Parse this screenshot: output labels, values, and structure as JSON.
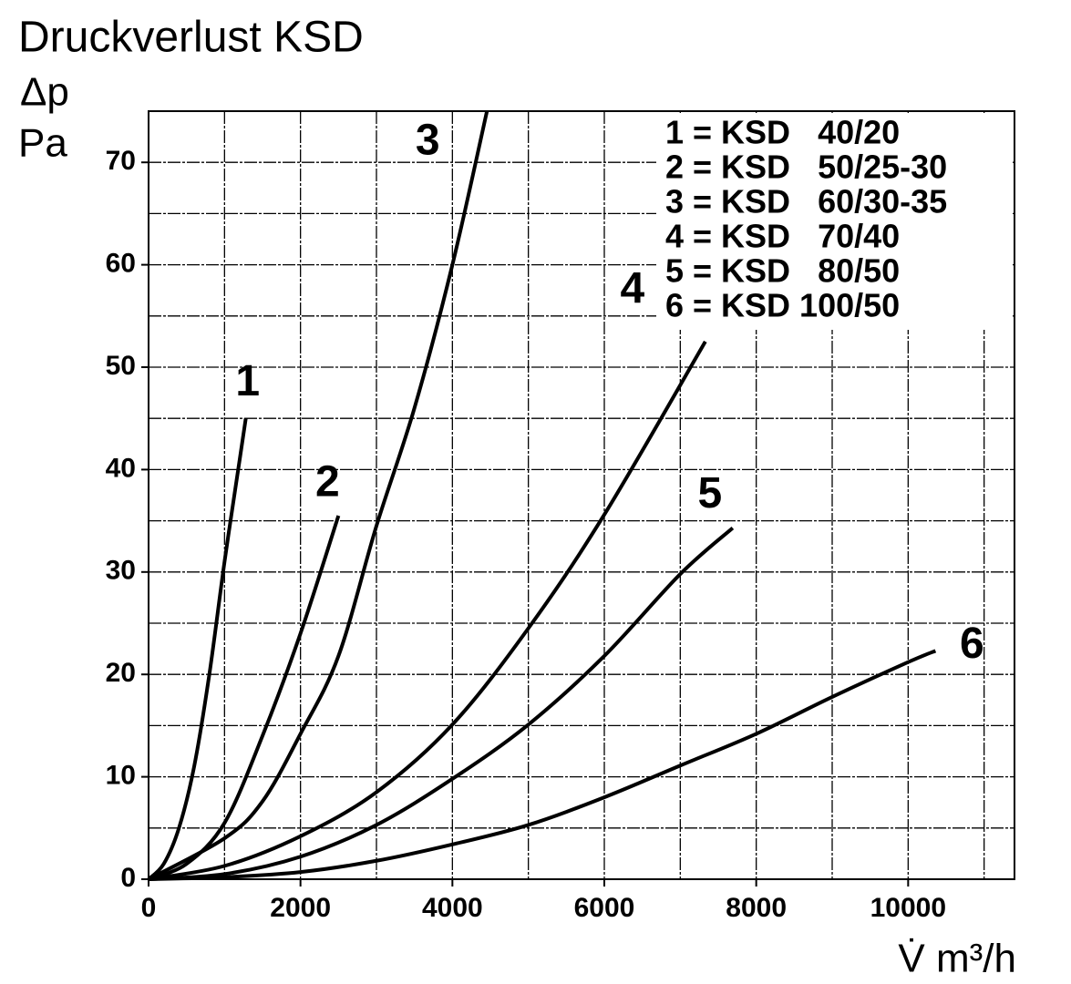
{
  "chart_data": {
    "type": "line",
    "title": "Druckverlust KSD",
    "y_label": "Δp",
    "y_unit": "Pa",
    "x_label": "V̇ m³/h",
    "xlim": [
      0,
      11400
    ],
    "ylim": [
      0,
      75
    ],
    "xticks": [
      0,
      2000,
      4000,
      6000,
      8000,
      10000
    ],
    "yticks": [
      0,
      10,
      20,
      30,
      40,
      50,
      60,
      70
    ],
    "grid": true,
    "legend": "upper right",
    "series": [
      {
        "name": "1 = KSD   40/20",
        "label": "1",
        "color": "#000000",
        "x": [
          0,
          200,
          400,
          600,
          800,
          1000,
          1200,
          1280
        ],
        "values": [
          0,
          1.5,
          5,
          11,
          20,
          31,
          41,
          45
        ]
      },
      {
        "name": "2 = KSD   50/25-30",
        "label": "2",
        "color": "#000000",
        "x": [
          0,
          500,
          1000,
          1500,
          2000,
          2500
        ],
        "values": [
          0,
          1.5,
          5.5,
          14,
          24,
          35.5
        ]
      },
      {
        "name": "3 = KSD   60/30-35",
        "label": "3",
        "color": "#000000",
        "x": [
          0,
          1000,
          1500,
          2000,
          2500,
          3000,
          3500,
          4000,
          4455
        ],
        "values": [
          0,
          4,
          7.6,
          14.2,
          21.8,
          34.5,
          46,
          60,
          75
        ]
      },
      {
        "name": "4 = KSD   70/40",
        "label": "4",
        "color": "#000000",
        "x": [
          0,
          1000,
          2000,
          3000,
          4000,
          5000,
          6000,
          7330
        ],
        "values": [
          0,
          1.3,
          4.2,
          8.5,
          15.1,
          24.5,
          35.6,
          52.5
        ]
      },
      {
        "name": "5 = KSD   80/50",
        "label": "5",
        "color": "#000000",
        "x": [
          0,
          1000,
          2000,
          3000,
          4000,
          5000,
          6000,
          7000,
          7690
        ],
        "values": [
          0,
          0.5,
          2.2,
          5.3,
          9.8,
          15.1,
          21.8,
          29.8,
          34.3
        ]
      },
      {
        "name": "6 = KSD 100/50",
        "label": "6",
        "color": "#000000",
        "x": [
          0,
          1000,
          2000,
          3000,
          4000,
          5000,
          6000,
          7000,
          8000,
          9000,
          10000,
          10360
        ],
        "values": [
          0,
          0.2,
          0.7,
          1.8,
          3.4,
          5.3,
          8,
          11.1,
          14.2,
          17.8,
          21.2,
          22.3
        ]
      }
    ]
  }
}
